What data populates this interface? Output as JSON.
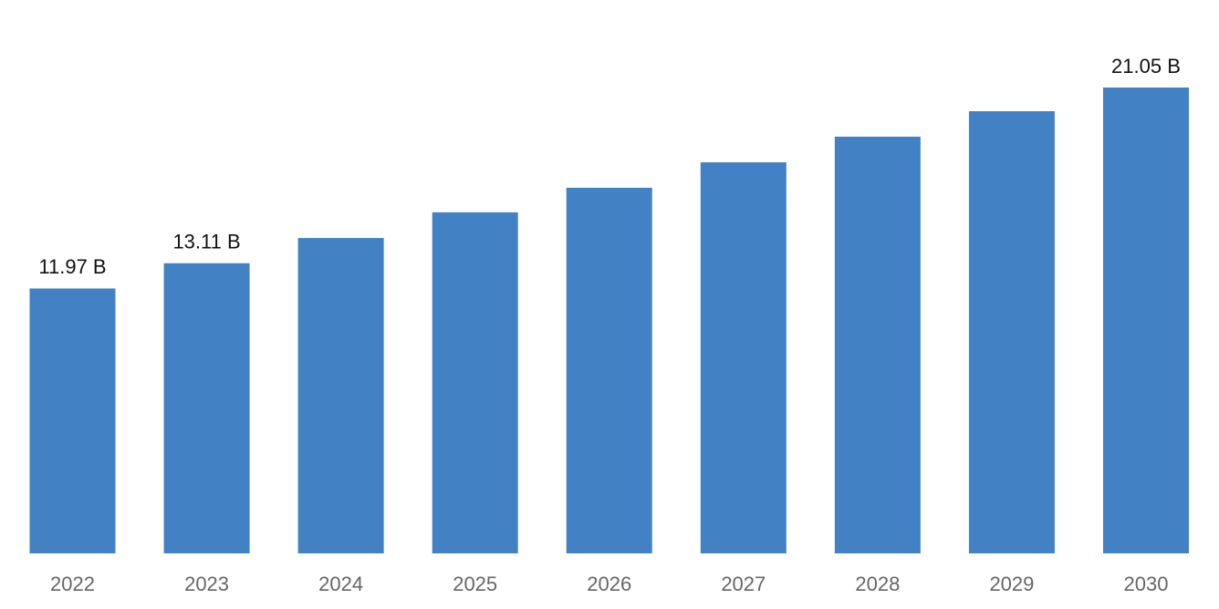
{
  "chart_data": {
    "type": "bar",
    "categories": [
      "2022",
      "2023",
      "2024",
      "2025",
      "2026",
      "2027",
      "2028",
      "2029",
      "2030"
    ],
    "values": [
      11.97,
      13.11,
      14.25,
      15.41,
      16.52,
      17.67,
      18.83,
      19.98,
      21.05
    ],
    "value_labels": [
      "11.97 B",
      "13.11 B",
      null,
      null,
      null,
      null,
      null,
      null,
      "21.05 B"
    ],
    "color": "#4181c4"
  }
}
